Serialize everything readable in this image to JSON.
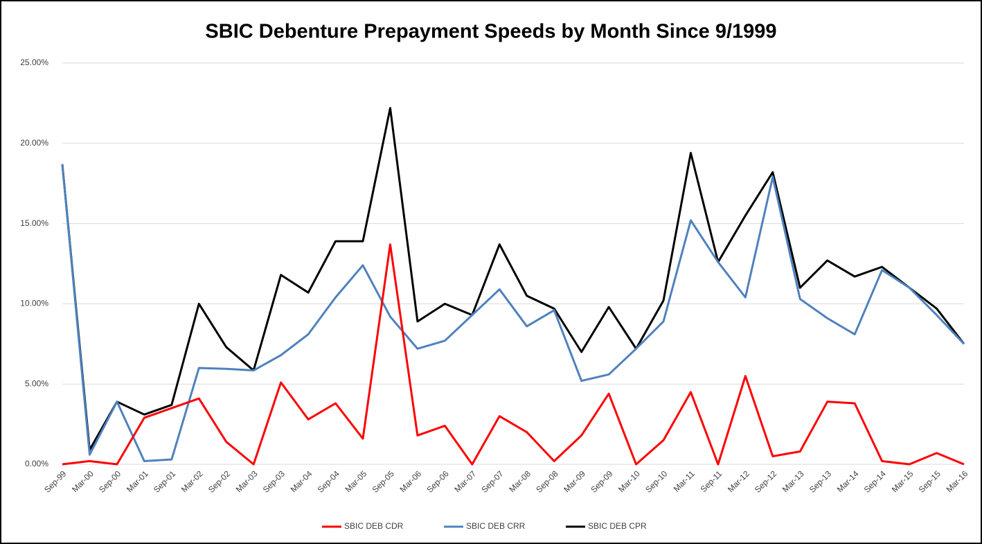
{
  "chart_data": {
    "type": "line",
    "title": "SBIC Debenture Prepayment Speeds by Month Since 9/1999",
    "categories": [
      "Sep-99",
      "Mar-00",
      "Sep-00",
      "Mar-01",
      "Sep-01",
      "Mar-02",
      "Sep-02",
      "Mar-03",
      "Sep-03",
      "Mar-04",
      "Sep-04",
      "Mar-05",
      "Sep-05",
      "Mar-06",
      "Sep-06",
      "Mar-07",
      "Sep-07",
      "Mar-08",
      "Sep-08",
      "Mar-09",
      "Sep-09",
      "Mar-10",
      "Sep-10",
      "Mar-11",
      "Sep-11",
      "Mar-12",
      "Sep-12",
      "Mar-13",
      "Sep-13",
      "Mar-14",
      "Sep-14",
      "Mar-15",
      "Sep-15",
      "Mar-16"
    ],
    "series": [
      {
        "name": "SBIC DEB CDR",
        "color": "#ff0000",
        "values": [
          0,
          0.2,
          0,
          2.9,
          3.5,
          4.1,
          1.4,
          0,
          5.1,
          2.8,
          3.8,
          1.6,
          13.7,
          1.8,
          2.4,
          0,
          3.0,
          2.0,
          0.2,
          1.8,
          4.4,
          0,
          1.5,
          4.5,
          0,
          5.5,
          0.5,
          0.8,
          3.9,
          3.8,
          0.2,
          0,
          0.7,
          0
        ]
      },
      {
        "name": "SBIC DEB CRR",
        "color": "#4f81bd",
        "values": [
          18.7,
          0.6,
          3.9,
          0.2,
          0.3,
          6.0,
          5.95,
          5.85,
          6.8,
          8.1,
          10.4,
          12.4,
          9.2,
          7.2,
          7.7,
          9.3,
          10.9,
          8.6,
          9.6,
          5.2,
          5.6,
          7.2,
          8.9,
          15.2,
          12.6,
          10.4,
          17.9,
          10.3,
          9.1,
          8.1,
          12.1,
          11.0,
          9.3,
          7.5
        ]
      },
      {
        "name": "SBIC DEB CPR",
        "color": "#000000",
        "values": [
          18.7,
          0.9,
          3.9,
          3.1,
          3.7,
          10.0,
          7.3,
          5.85,
          11.8,
          10.7,
          13.9,
          13.9,
          22.2,
          8.9,
          10.0,
          9.3,
          13.7,
          10.5,
          9.7,
          7.0,
          9.8,
          7.2,
          10.2,
          19.4,
          12.6,
          15.5,
          18.2,
          11.0,
          12.7,
          11.7,
          12.3,
          11.0,
          9.7,
          7.5
        ]
      }
    ],
    "ylim": [
      0,
      25
    ],
    "yticks": [
      {
        "value": 0,
        "label": "0.00%"
      },
      {
        "value": 5,
        "label": "5.00%"
      },
      {
        "value": 10,
        "label": "10.00%"
      },
      {
        "value": 15,
        "label": "15.00%"
      },
      {
        "value": 20,
        "label": "20.00%"
      },
      {
        "value": 25,
        "label": "25.00%"
      }
    ],
    "grid": true,
    "legend": "bottom"
  }
}
